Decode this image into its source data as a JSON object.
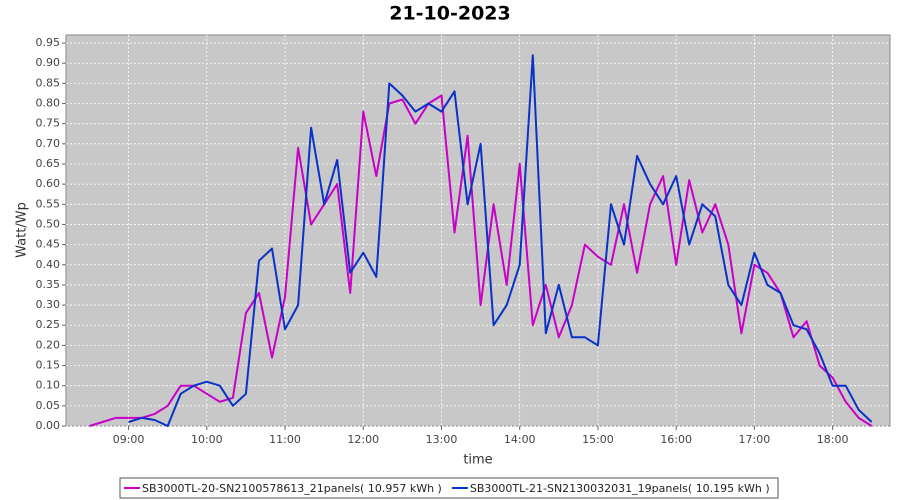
{
  "chart_data": {
    "type": "line",
    "title": "21-10-2023",
    "x_label": "time",
    "y_label": "Watt/Wp",
    "x": [
      510,
      520,
      530,
      540,
      550,
      560,
      570,
      580,
      590,
      600,
      610,
      620,
      630,
      640,
      650,
      660,
      670,
      680,
      690,
      700,
      710,
      720,
      730,
      740,
      750,
      760,
      770,
      780,
      790,
      800,
      810,
      820,
      830,
      840,
      850,
      860,
      870,
      880,
      890,
      900,
      910,
      920,
      930,
      940,
      950,
      960,
      970,
      980,
      990,
      1000,
      1010,
      1020,
      1030,
      1040,
      1050,
      1060,
      1070,
      1080,
      1090,
      1100,
      1110
    ],
    "series": [
      {
        "name": "SB3000TL-20-SN2100578613_21panels( 10.957 kWh )",
        "color": "#c800c8",
        "values": [
          0.0,
          0.01,
          0.02,
          0.02,
          0.02,
          0.03,
          0.05,
          0.1,
          0.1,
          0.08,
          0.06,
          0.07,
          0.28,
          0.33,
          0.17,
          0.32,
          0.69,
          0.5,
          0.55,
          0.6,
          0.33,
          0.78,
          0.62,
          0.8,
          0.81,
          0.75,
          0.8,
          0.82,
          0.48,
          0.72,
          0.3,
          0.55,
          0.35,
          0.65,
          0.25,
          0.35,
          0.22,
          0.3,
          0.45,
          0.42,
          0.4,
          0.55,
          0.38,
          0.55,
          0.62,
          0.4,
          0.61,
          0.48,
          0.55,
          0.45,
          0.23,
          0.4,
          0.38,
          0.33,
          0.22,
          0.26,
          0.15,
          0.12,
          0.06,
          0.02,
          0.0
        ]
      },
      {
        "name": "SB3000TL-21-SN2130032031_19panels( 10.195 kWh )",
        "color": "#0a32c8",
        "values": [
          null,
          null,
          null,
          0.01,
          0.02,
          0.015,
          0.0,
          0.08,
          0.1,
          0.11,
          0.1,
          0.05,
          0.08,
          0.41,
          0.44,
          0.24,
          0.3,
          0.74,
          0.55,
          0.66,
          0.38,
          0.43,
          0.37,
          0.85,
          0.82,
          0.78,
          0.8,
          0.78,
          0.83,
          0.55,
          0.7,
          0.25,
          0.3,
          0.4,
          0.92,
          0.23,
          0.35,
          0.22,
          0.22,
          0.2,
          0.55,
          0.45,
          0.67,
          0.6,
          0.55,
          0.62,
          0.45,
          0.55,
          0.52,
          0.35,
          0.3,
          0.43,
          0.35,
          0.33,
          0.25,
          0.24,
          0.18,
          0.1,
          0.1,
          0.04,
          0.01
        ]
      }
    ],
    "xlim": [
      492,
      1124
    ],
    "xticks": [
      {
        "value": 540,
        "label": "09:00"
      },
      {
        "value": 600,
        "label": "10:00"
      },
      {
        "value": 660,
        "label": "11:00"
      },
      {
        "value": 720,
        "label": "12:00"
      },
      {
        "value": 780,
        "label": "13:00"
      },
      {
        "value": 840,
        "label": "14:00"
      },
      {
        "value": 900,
        "label": "15:00"
      },
      {
        "value": 960,
        "label": "16:00"
      },
      {
        "value": 1020,
        "label": "17:00"
      },
      {
        "value": 1080,
        "label": "18:00"
      }
    ],
    "ylim": [
      0,
      0.97
    ],
    "yticks": [
      {
        "value": 0,
        "label": "0.00"
      },
      {
        "value": 0.05,
        "label": "0.05"
      },
      {
        "value": 0.1,
        "label": "0.10"
      },
      {
        "value": 0.15,
        "label": "0.15"
      },
      {
        "value": 0.2,
        "label": "0.20"
      },
      {
        "value": 0.25,
        "label": "0.25"
      },
      {
        "value": 0.3,
        "label": "0.30"
      },
      {
        "value": 0.35,
        "label": "0.35"
      },
      {
        "value": 0.4,
        "label": "0.40"
      },
      {
        "value": 0.45,
        "label": "0.45"
      },
      {
        "value": 0.5,
        "label": "0.50"
      },
      {
        "value": 0.55,
        "label": "0.55"
      },
      {
        "value": 0.6,
        "label": "0.60"
      },
      {
        "value": 0.65,
        "label": "0.65"
      },
      {
        "value": 0.7,
        "label": "0.70"
      },
      {
        "value": 0.75,
        "label": "0.75"
      },
      {
        "value": 0.8,
        "label": "0.80"
      },
      {
        "value": 0.85,
        "label": "0.85"
      },
      {
        "value": 0.9,
        "label": "0.90"
      },
      {
        "value": 0.95,
        "label": "0.95"
      }
    ],
    "grid": true,
    "legend": "bottom"
  }
}
